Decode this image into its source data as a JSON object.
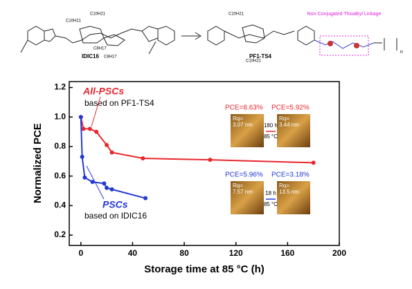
{
  "structures": {
    "left": "IDIC16",
    "right": "PF1-TS4",
    "linkage": "Non-Conjugated Thioalkyl Linkage",
    "side_chains": [
      "C10H21",
      "C8H17",
      "C10H21",
      "C8H17",
      "C10H21",
      "C10H21"
    ],
    "repeat": "n"
  },
  "chart_data": {
    "type": "line",
    "xlabel": "Storage time at 85 °C (h)",
    "ylabel": "Normalized PCE",
    "xlim": [
      -9,
      200
    ],
    "xticks": [
      0,
      40,
      80,
      120,
      160,
      200
    ],
    "ylim": [
      0.13,
      1.24
    ],
    "yticks": [
      {
        "value": 0.2,
        "label": "0.2"
      },
      {
        "value": 0.4,
        "label": "0.4"
      },
      {
        "value": 0.6,
        "label": "0.6"
      },
      {
        "value": 0.8,
        "label": "0.8"
      },
      {
        "value": 1.0,
        "label": "1.0"
      },
      {
        "value": 1.2,
        "label": "1.2"
      }
    ],
    "series": [
      {
        "name": "All-PSCs",
        "subtitle": "based on PF1-TS4",
        "color": "#e8262b",
        "x": [
          0,
          2,
          7,
          12,
          20,
          24,
          48,
          100,
          180
        ],
        "values": [
          1.0,
          0.92,
          0.92,
          0.9,
          0.81,
          0.76,
          0.72,
          0.71,
          0.69
        ]
      },
      {
        "name": "PSCs",
        "subtitle": "based on IDIC16",
        "color": "#2238d6",
        "x": [
          0,
          1,
          3,
          9,
          18,
          20,
          24,
          50
        ],
        "values": [
          1.0,
          0.73,
          0.59,
          0.56,
          0.55,
          0.52,
          0.51,
          0.45
        ]
      }
    ],
    "insets": [
      {
        "pce": "PCE=8.63%",
        "rq": "Rq=",
        "rq_value": "3.07 nm"
      },
      {
        "pce": "PCE=5.92%",
        "rq": "Rq=",
        "rq_value": "3.44 nm"
      },
      {
        "pce": "PCE=5.96%",
        "rq": "Rq=",
        "rq_value": "7.57 nm"
      },
      {
        "pce": "PCE=3.18%",
        "rq": "Rq=",
        "rq_value": "13.5 nm"
      }
    ],
    "arrows": [
      {
        "time": "180 h",
        "temp": "85 °C"
      },
      {
        "time": "18 h",
        "temp": "85 °C"
      }
    ]
  }
}
